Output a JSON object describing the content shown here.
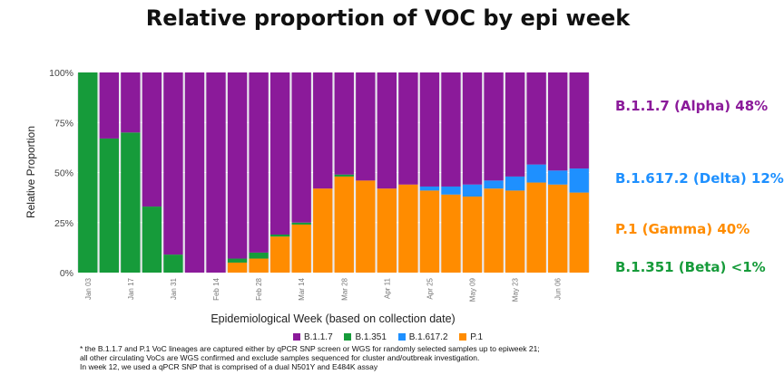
{
  "title": "Relative proportion of VOC by epi week",
  "colors": {
    "alpha": "#8B1A9A",
    "beta": "#169B3A",
    "delta": "#1E90FF",
    "gamma": "#FF8C00"
  },
  "callouts": {
    "alpha": "B.1.1.7 (Alpha) 48%",
    "delta": "B.1.617.2 (Delta) 12%",
    "gamma": "P.1 (Gamma) 40%",
    "beta": "B.1.351 (Beta) <1%"
  },
  "legend": [
    "B.1.1.7",
    "B.1.351",
    "B.1.617.2",
    "P.1"
  ],
  "notes": [
    "* the B.1.1.7 and P.1 VoC lineages are captured either by qPCR SNP screen or WGS for randomly selected samples up to epiweek 21;",
    "all other circulating VoCs are WGS confirmed and exclude samples sequenced for cluster and/outbreak investigation.",
    "In week 12, we used a qPCR SNP that is comprised of a dual N501Y and E484K assay"
  ],
  "chart_data": {
    "type": "bar",
    "stacked": true,
    "xlabel": "Epidemiological Week (based on collection date)",
    "ylabel": "Relative Proportion",
    "ylim": [
      0,
      100
    ],
    "yticks": [
      "0%",
      "25%",
      "50%",
      "75%",
      "100%"
    ],
    "xticks": [
      {
        "index": 0,
        "label": "Jan 03"
      },
      {
        "index": 2,
        "label": "Jan 17"
      },
      {
        "index": 4,
        "label": "Jan 31"
      },
      {
        "index": 6,
        "label": "Feb 14"
      },
      {
        "index": 8,
        "label": "Feb 28"
      },
      {
        "index": 10,
        "label": "Mar 14"
      },
      {
        "index": 12,
        "label": "Mar 28"
      },
      {
        "index": 14,
        "label": "Apr 11"
      },
      {
        "index": 16,
        "label": "Apr 25"
      },
      {
        "index": 18,
        "label": "May 09"
      },
      {
        "index": 20,
        "label": "May 23"
      },
      {
        "index": 22,
        "label": "Jun 06"
      }
    ],
    "weeks": 24,
    "series": [
      {
        "name": "P.1",
        "color": "#FF8C00",
        "values": [
          0,
          0,
          0,
          0,
          0,
          0,
          0,
          5,
          7,
          18,
          24,
          42,
          48,
          46,
          42,
          44,
          41,
          39,
          38,
          42,
          41,
          45,
          44,
          40
        ]
      },
      {
        "name": "B.1.617.2",
        "color": "#1E90FF",
        "values": [
          0,
          0,
          0,
          0,
          0,
          0,
          0,
          0,
          0,
          0,
          0,
          0,
          0,
          0,
          0,
          0,
          2,
          4,
          6,
          4,
          7,
          9,
          7,
          12
        ]
      },
      {
        "name": "B.1.351",
        "color": "#169B3A",
        "values": [
          100,
          67,
          70,
          33,
          9,
          0,
          0,
          2,
          3,
          1,
          1,
          0,
          1,
          0,
          0,
          0,
          0,
          0,
          0,
          0,
          0,
          0,
          0,
          0
        ]
      },
      {
        "name": "B.1.1.7",
        "color": "#8B1A9A",
        "values": [
          0,
          33,
          30,
          67,
          91,
          100,
          100,
          93,
          90,
          81,
          75,
          58,
          51,
          54,
          58,
          56,
          57,
          57,
          56,
          54,
          52,
          46,
          49,
          48
        ]
      }
    ]
  }
}
